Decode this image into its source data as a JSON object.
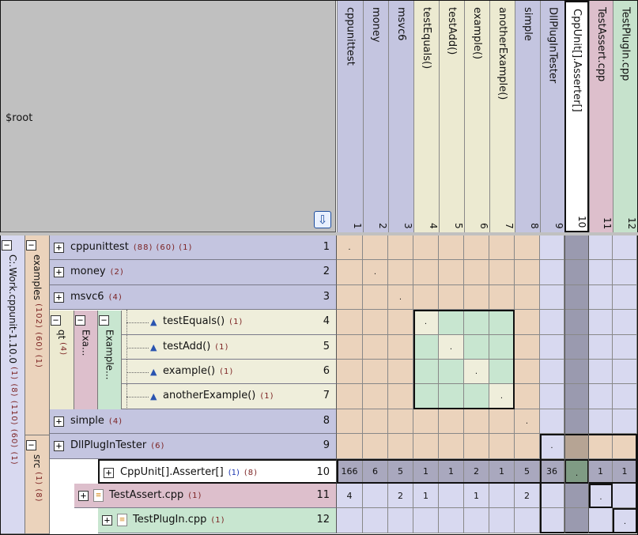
{
  "root": {
    "label": "$root",
    "scroll_icon": "down-arrow-icon"
  },
  "columns": [
    {
      "label": "cppunittest",
      "num": "1",
      "color": "#c4c5e0"
    },
    {
      "label": "money",
      "num": "2",
      "color": "#c4c5e0"
    },
    {
      "label": "msvc6",
      "num": "3",
      "color": "#c4c5e0"
    },
    {
      "label": "testEquals()",
      "num": "4",
      "color": "#ecead1"
    },
    {
      "label": "testAdd()",
      "num": "5",
      "color": "#ecead1"
    },
    {
      "label": "example()",
      "num": "6",
      "color": "#ecead1"
    },
    {
      "label": "anotherExample()",
      "num": "7",
      "color": "#ecead1"
    },
    {
      "label": "simple",
      "num": "8",
      "color": "#c4c5e0"
    },
    {
      "label": "DllPlugInTester",
      "num": "9",
      "color": "#c4c5e0"
    },
    {
      "label": "CppUnit[].Asserter[]",
      "num": "10",
      "color": "#ffffff"
    },
    {
      "label": "TestAssert.cpp",
      "num": "11",
      "color": "#ddbfcc"
    },
    {
      "label": "TestPlugIn.cpp",
      "num": "12",
      "color": "#c6e2cc"
    }
  ],
  "groups": {
    "cwork": {
      "label": "C:.Work.cppunit-1.10.0",
      "counts": "(1) (8) (110) (60) (1)"
    },
    "examples": {
      "label": "examples",
      "counts": "(102) (60) (1)"
    },
    "qt": {
      "label": "qt",
      "counts": "(4)"
    },
    "exa": {
      "label": "Exa..."
    },
    "examplefile": {
      "label": "Example..."
    },
    "src": {
      "label": "src",
      "counts": "(1) (8)"
    }
  },
  "rows": [
    {
      "label": "cppunittest",
      "counts": "(88) (60) (1)",
      "num": "1"
    },
    {
      "label": "money",
      "counts": "(2)",
      "num": "2"
    },
    {
      "label": "msvc6",
      "counts": "(4)",
      "num": "3"
    },
    {
      "label": "testEquals()",
      "counts": "(1)",
      "num": "4"
    },
    {
      "label": "testAdd()",
      "counts": "(1)",
      "num": "5"
    },
    {
      "label": "example()",
      "counts": "(1)",
      "num": "6"
    },
    {
      "label": "anotherExample()",
      "counts": "(1)",
      "num": "7"
    },
    {
      "label": "simple",
      "counts": "(4)",
      "num": "8"
    },
    {
      "label": "DllPlugInTester",
      "counts": "(6)",
      "num": "9"
    },
    {
      "label": "CppUnit[].Asserter[]",
      "counts_blue": "(1)",
      "counts": "(8)",
      "num": "10"
    },
    {
      "label": "TestAssert.cpp",
      "counts": "(1)",
      "num": "11"
    },
    {
      "label": "TestPlugIn.cpp",
      "counts": "(1)",
      "num": "12"
    }
  ],
  "row10_values": [
    "166",
    "6",
    "5",
    "1",
    "1",
    "2",
    "1",
    "5",
    "36",
    ".",
    "1",
    "1"
  ],
  "row11_values": [
    "4",
    "",
    "2",
    "1",
    "",
    "1",
    "",
    "2",
    "",
    "",
    ".",
    ""
  ],
  "diag_mark": ".",
  "colors": {
    "peach": "#ebd3bc",
    "lavender": "#d8d9f0",
    "green": "#c8e6d0",
    "cream": "#efeedb",
    "gray_row": "#a9a8be",
    "dark_col": "#9a9aaf",
    "brown": "#b6a494"
  }
}
